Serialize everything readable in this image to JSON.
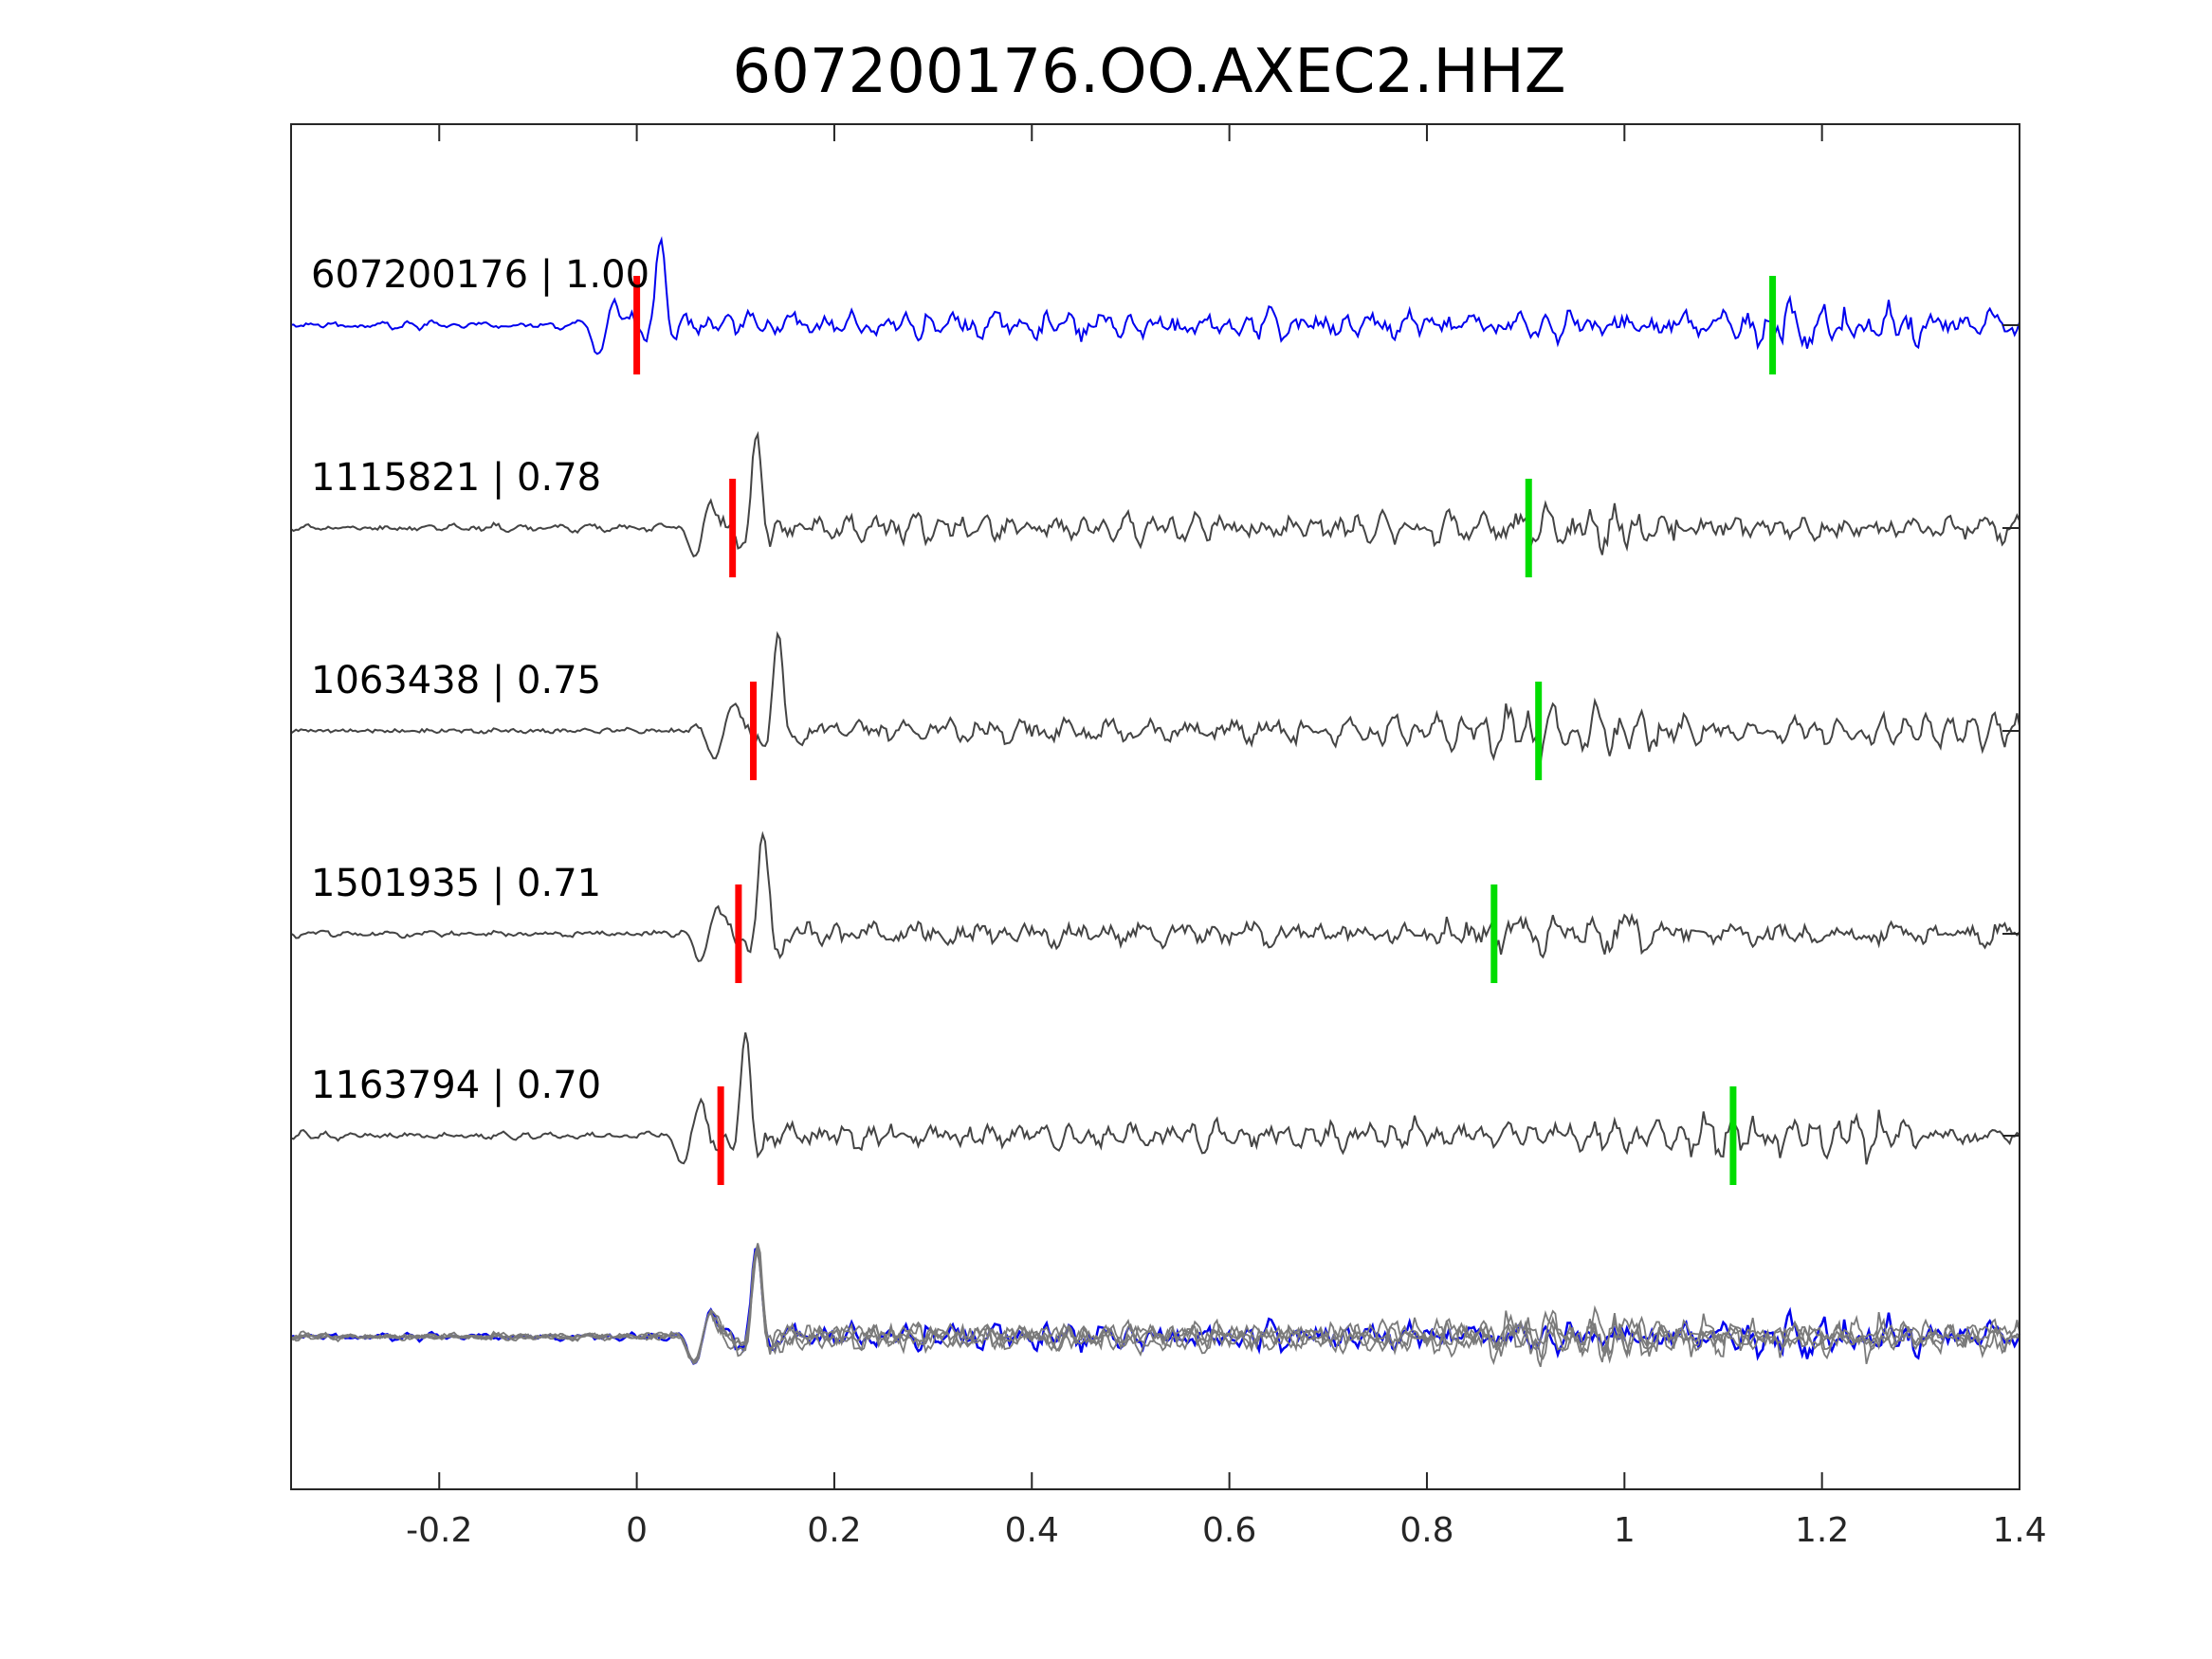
{
  "chart_data": {
    "type": "line",
    "title": "607200176.OO.AXEC2.HHZ",
    "xlabel": "",
    "ylabel": "",
    "xlim": [
      -0.35,
      1.4
    ],
    "xticks": [
      -0.2,
      0,
      0.2,
      0.4,
      0.6,
      0.8,
      1,
      1.2,
      1.4
    ],
    "xtick_labels": [
      "-0.2",
      "0",
      "0.2",
      "0.4",
      "0.6",
      "0.8",
      "1",
      "1.2",
      "1.4"
    ],
    "grid": false,
    "legend": "none",
    "colors": {
      "master": "#0000ee",
      "template": "#444444",
      "stack": "#7a7a7a",
      "p_pick": "#ff0000",
      "s_pick": "#00dd00"
    },
    "series": [
      {
        "name": "607200176",
        "label": "607200176 | 1.00",
        "cc": 1.0,
        "color": "#0000ee",
        "p_pick": 0.0,
        "s_pick": 1.15
      },
      {
        "name": "1115821",
        "label": "1115821 | 0.78",
        "cc": 0.78,
        "color": "#444444",
        "p_pick": 0.097,
        "s_pick": 0.903
      },
      {
        "name": "1063438",
        "label": "1063438 | 0.75",
        "cc": 0.75,
        "color": "#444444",
        "p_pick": 0.118,
        "s_pick": 0.913
      },
      {
        "name": "1501935",
        "label": "1501935 | 0.71",
        "cc": 0.71,
        "color": "#444444",
        "p_pick": 0.103,
        "s_pick": 0.868
      },
      {
        "name": "1163794",
        "label": "1163794 | 0.70",
        "cc": 0.7,
        "color": "#444444",
        "p_pick": 0.085,
        "s_pick": 1.11
      }
    ]
  }
}
